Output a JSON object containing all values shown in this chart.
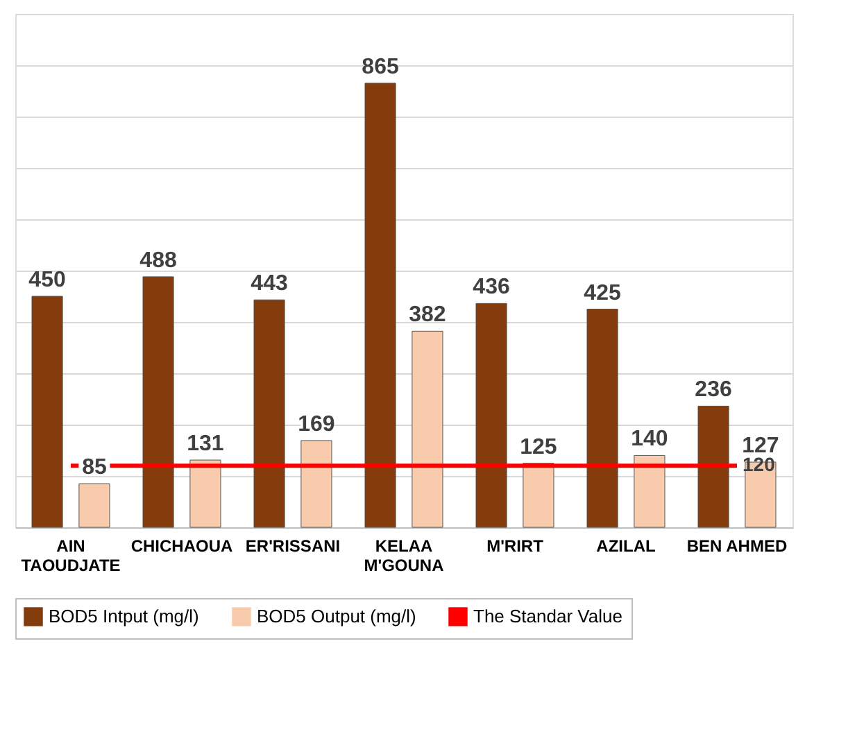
{
  "chart_data": {
    "type": "bar",
    "categories": [
      "AIN\nTAOUDJATE",
      "CHICHAOUA",
      "ER'RISSANI",
      "KELAA\nM'GOUNA",
      "M'RIRT",
      "AZILAL",
      "BEN AHMED"
    ],
    "series": [
      {
        "name": "BOD5 Intput (mg/l)",
        "color": "#843c0c",
        "values": [
          450,
          488,
          443,
          865,
          436,
          425,
          236
        ]
      },
      {
        "name": "BOD5 Output (mg/l)",
        "color": "#f8cbad",
        "values": [
          85,
          131,
          169,
          382,
          125,
          140,
          127
        ]
      },
      {
        "name": "The Standar Value",
        "type": "line",
        "color": "#ff0000",
        "values": [
          120,
          120,
          120,
          120,
          120,
          120,
          120
        ],
        "value_labels": [
          null,
          null,
          null,
          null,
          null,
          null,
          "120"
        ]
      }
    ],
    "data_labels": true,
    "ylim": [
      0,
      1000
    ],
    "tick_labels": "x",
    "grid": "y",
    "legend": "bottom"
  }
}
